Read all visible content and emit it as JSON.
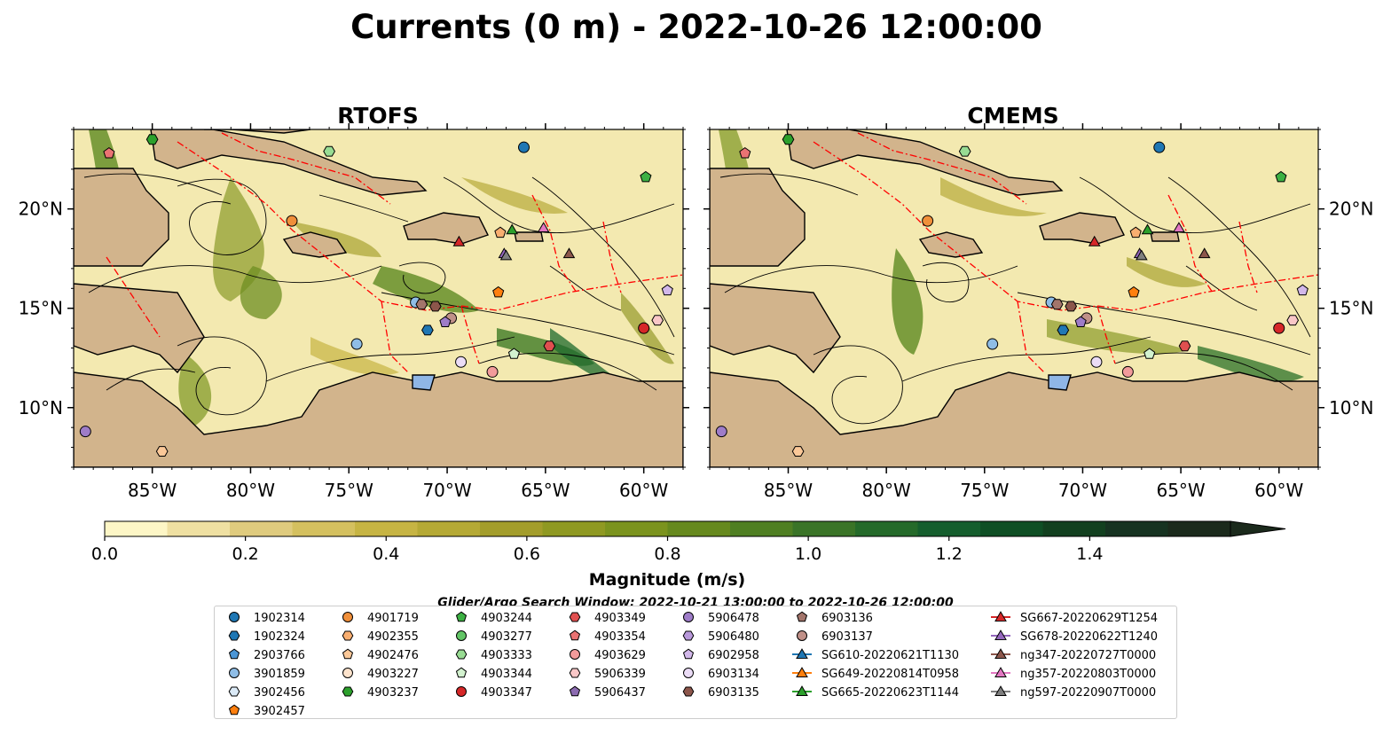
{
  "title": "Currents (0 m) - 2022-10-26 12:00:00",
  "panels": [
    {
      "title": "RTOFS"
    },
    {
      "title": "CMEMS"
    }
  ],
  "axes": {
    "lon_ticks": [
      "85°W",
      "80°W",
      "75°W",
      "70°W",
      "65°W",
      "60°W"
    ],
    "lat_ticks": [
      "20°N",
      "15°N",
      "10°N"
    ],
    "lon_values": [
      -85,
      -80,
      -75,
      -70,
      -65,
      -60
    ],
    "lat_values": [
      20,
      15,
      10
    ],
    "lon_range": [
      -89,
      -58
    ],
    "lat_range": [
      7,
      24
    ]
  },
  "colorbar": {
    "label": "Magnitude (m/s)",
    "ticks": [
      "0.0",
      "0.2",
      "0.4",
      "0.6",
      "0.8",
      "1.0",
      "1.2",
      "1.4"
    ],
    "range": [
      0,
      1.6
    ],
    "extend": "max",
    "colors": [
      "#fdf6c6",
      "#efe0a2",
      "#dfcb7e",
      "#d4c05f",
      "#c6b443",
      "#b5a935",
      "#a39d2b",
      "#8f9922",
      "#7b931e",
      "#66891e",
      "#4f7f22",
      "#3a7427",
      "#256a2a",
      "#155e2d",
      "#0f4f25",
      "#12401f",
      "#163321",
      "#1b2a1c"
    ]
  },
  "search_window": "Glider/Argo Search Window: 2022-10-21 13:00:00 to 2022-10-26 12:00:00",
  "legend": {
    "columns": [
      [
        {
          "label": "1902314",
          "marker": "circle",
          "color": "#1f77b4"
        },
        {
          "label": "1902324",
          "marker": "hexagon",
          "color": "#1f77b4"
        },
        {
          "label": "2903766",
          "marker": "pentagon",
          "color": "#4b96d6"
        },
        {
          "label": "3901859",
          "marker": "circle",
          "color": "#8fbde6"
        },
        {
          "label": "3902456",
          "marker": "hexagon",
          "color": "#dbeaf7"
        },
        {
          "label": "3902457",
          "marker": "pentagon",
          "color": "#ff7f0e"
        }
      ],
      [
        {
          "label": "4901719",
          "marker": "circle",
          "color": "#f08f3a"
        },
        {
          "label": "4902355",
          "marker": "hexagon",
          "color": "#f8ae70"
        },
        {
          "label": "4902476",
          "marker": "pentagon",
          "color": "#fbc898"
        },
        {
          "label": "4903227",
          "marker": "circle",
          "color": "#fde3cc"
        },
        {
          "label": "4903237",
          "marker": "hexagon",
          "color": "#2ca02c"
        }
      ],
      [
        {
          "label": "4903244",
          "marker": "pentagon",
          "color": "#3cb043"
        },
        {
          "label": "4903277",
          "marker": "circle",
          "color": "#62c566"
        },
        {
          "label": "4903333",
          "marker": "hexagon",
          "color": "#98dc93"
        },
        {
          "label": "4903344",
          "marker": "pentagon",
          "color": "#d3f2cf"
        },
        {
          "label": "4903347",
          "marker": "circle",
          "color": "#d62728"
        }
      ],
      [
        {
          "label": "4903349",
          "marker": "hexagon",
          "color": "#e04f4f"
        },
        {
          "label": "4903354",
          "marker": "pentagon",
          "color": "#ea7373"
        },
        {
          "label": "4903629",
          "marker": "circle",
          "color": "#f29b9b"
        },
        {
          "label": "5906339",
          "marker": "hexagon",
          "color": "#f9c7c7"
        },
        {
          "label": "5906437",
          "marker": "pentagon",
          "color": "#8c6bb1"
        }
      ],
      [
        {
          "label": "5906478",
          "marker": "circle",
          "color": "#9e7cc8"
        },
        {
          "label": "5906480",
          "marker": "hexagon",
          "color": "#b898da"
        },
        {
          "label": "6902958",
          "marker": "pentagon",
          "color": "#d2b8ea"
        },
        {
          "label": "6903134",
          "marker": "circle",
          "color": "#ebdcf6"
        },
        {
          "label": "6903135",
          "marker": "hexagon",
          "color": "#8c564b"
        }
      ],
      [
        {
          "label": "6903136",
          "marker": "pentagon",
          "color": "#a3756b"
        },
        {
          "label": "6903137",
          "marker": "circle",
          "color": "#c09088"
        },
        {
          "label": "SG610-20220621T1130",
          "marker": "triangle-line",
          "color": "#1f77b4"
        },
        {
          "label": "SG649-20220814T0958",
          "marker": "triangle-line",
          "color": "#ff7f0e"
        },
        {
          "label": "SG665-20220623T1144",
          "marker": "triangle-line",
          "color": "#2ca02c"
        }
      ],
      [
        {
          "label": "SG667-20220629T1254",
          "marker": "triangle-line",
          "color": "#d62728"
        },
        {
          "label": "SG678-20220622T1240",
          "marker": "triangle-line",
          "color": "#9467bd"
        },
        {
          "label": "ng347-20220727T0000",
          "marker": "triangle-line",
          "color": "#8c564b"
        },
        {
          "label": "ng357-20220803T0000",
          "marker": "triangle-line",
          "color": "#e377c2"
        },
        {
          "label": "ng597-20220907T0000",
          "marker": "triangle-line",
          "color": "#7f7f7f"
        }
      ]
    ]
  },
  "map_markers": [
    {
      "lon": -66.1,
      "lat": 23.1,
      "marker": "circle",
      "color": "#1f77b4"
    },
    {
      "lon": -85.0,
      "lat": 23.5,
      "marker": "hexagon",
      "color": "#2ca02c"
    },
    {
      "lon": -87.2,
      "lat": 22.8,
      "marker": "pentagon",
      "color": "#ea7373"
    },
    {
      "lon": -76.0,
      "lat": 22.9,
      "marker": "hexagon",
      "color": "#98dc93"
    },
    {
      "lon": -59.9,
      "lat": 21.6,
      "marker": "pentagon",
      "color": "#3cb043"
    },
    {
      "lon": -77.9,
      "lat": 19.4,
      "marker": "circle",
      "color": "#f08f3a"
    },
    {
      "lon": -69.4,
      "lat": 18.3,
      "marker": "triangle",
      "color": "#d62728"
    },
    {
      "lon": -66.7,
      "lat": 18.9,
      "marker": "triangle",
      "color": "#2ca02c"
    },
    {
      "lon": -67.3,
      "lat": 18.8,
      "marker": "pentagon",
      "color": "#f8ae70"
    },
    {
      "lon": -65.1,
      "lat": 19.0,
      "marker": "triangle",
      "color": "#e377c2"
    },
    {
      "lon": -67.1,
      "lat": 17.7,
      "marker": "triangle",
      "color": "#9467bd"
    },
    {
      "lon": -67.0,
      "lat": 17.6,
      "marker": "triangle",
      "color": "#7f7f7f"
    },
    {
      "lon": -63.8,
      "lat": 17.7,
      "marker": "triangle",
      "color": "#8c564b"
    },
    {
      "lon": -67.4,
      "lat": 15.8,
      "marker": "pentagon",
      "color": "#ff7f0e"
    },
    {
      "lon": -58.8,
      "lat": 15.9,
      "marker": "pentagon",
      "color": "#d2b8ea"
    },
    {
      "lon": -71.6,
      "lat": 15.3,
      "marker": "circle",
      "color": "#8fbde6"
    },
    {
      "lon": -71.3,
      "lat": 15.2,
      "marker": "hexagon",
      "color": "#a3756b"
    },
    {
      "lon": -70.6,
      "lat": 15.1,
      "marker": "hexagon",
      "color": "#8c564b"
    },
    {
      "lon": -69.8,
      "lat": 14.5,
      "marker": "circle",
      "color": "#c09088"
    },
    {
      "lon": -70.1,
      "lat": 14.3,
      "marker": "pentagon",
      "color": "#9e7cc8"
    },
    {
      "lon": -71.0,
      "lat": 13.9,
      "marker": "hexagon",
      "color": "#1f77b4"
    },
    {
      "lon": -74.6,
      "lat": 13.2,
      "marker": "circle",
      "color": "#8fbde6"
    },
    {
      "lon": -59.3,
      "lat": 14.4,
      "marker": "hexagon",
      "color": "#f9c7c7"
    },
    {
      "lon": -60.0,
      "lat": 14.0,
      "marker": "circle",
      "color": "#d62728"
    },
    {
      "lon": -64.8,
      "lat": 13.1,
      "marker": "hexagon",
      "color": "#e04f4f"
    },
    {
      "lon": -66.6,
      "lat": 12.7,
      "marker": "pentagon",
      "color": "#d3f2cf"
    },
    {
      "lon": -69.3,
      "lat": 12.3,
      "marker": "circle",
      "color": "#ebdcf6"
    },
    {
      "lon": -67.7,
      "lat": 11.8,
      "marker": "circle",
      "color": "#f29b9b"
    },
    {
      "lon": -88.4,
      "lat": 8.8,
      "marker": "circle",
      "color": "#9e7cc8"
    },
    {
      "lon": -84.5,
      "lat": 7.8,
      "marker": "hexagon",
      "color": "#fbc898"
    }
  ]
}
